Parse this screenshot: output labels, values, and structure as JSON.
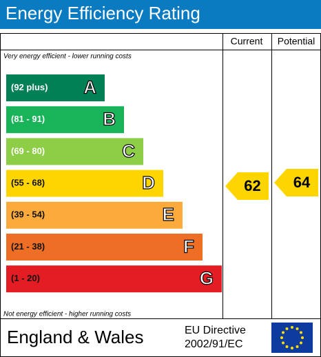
{
  "header": {
    "title": "Energy Efficiency Rating"
  },
  "columns": [
    "Current",
    "Potential"
  ],
  "top_note": "Very energy efficient - lower running costs",
  "bottom_note": "Not energy efficient - higher running costs",
  "bands": [
    {
      "range": "(92 plus)",
      "letter": "A",
      "color": "#008054"
    },
    {
      "range": "(81 - 91)",
      "letter": "B",
      "color": "#19b459"
    },
    {
      "range": "(69 - 80)",
      "letter": "C",
      "color": "#8dce46"
    },
    {
      "range": "(55 - 68)",
      "letter": "D",
      "color": "#ffd500"
    },
    {
      "range": "(39 - 54)",
      "letter": "E",
      "color": "#fcaa3b"
    },
    {
      "range": "(21 - 38)",
      "letter": "F",
      "color": "#ef6e25"
    },
    {
      "range": "(1 - 20)",
      "letter": "G",
      "color": "#e31d23"
    }
  ],
  "current": {
    "value": "62",
    "color": "#ffd500"
  },
  "potential": {
    "value": "64",
    "color": "#ffd500"
  },
  "footer": {
    "region": "England & Wales",
    "directive": [
      "EU Directive",
      "2002/91/EC"
    ]
  }
}
